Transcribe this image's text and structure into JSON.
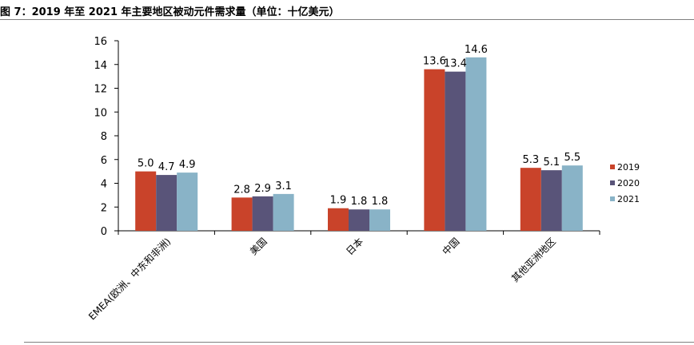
{
  "figure": {
    "title": "图 7：2019 年至 2021 年主要地区被动元件需求量（单位：十亿美元）"
  },
  "chart_data": {
    "type": "bar",
    "categories": [
      "EMEA(欧洲、中东和非洲)",
      "美国",
      "日本",
      "中国",
      "其他亚洲地区"
    ],
    "series": [
      {
        "name": "2019",
        "color": "#c9432a",
        "values": [
          5.0,
          2.8,
          1.9,
          13.6,
          5.3
        ]
      },
      {
        "name": "2020",
        "color": "#595479",
        "values": [
          4.7,
          2.9,
          1.8,
          13.4,
          5.1
        ]
      },
      {
        "name": "2021",
        "color": "#89b3c7",
        "values": [
          4.9,
          3.1,
          1.8,
          14.6,
          5.5
        ]
      }
    ],
    "ylim": [
      0,
      16
    ],
    "yticks": [
      0,
      2,
      4,
      6,
      8,
      10,
      12,
      14,
      16
    ],
    "grid": false,
    "legend": "right"
  }
}
